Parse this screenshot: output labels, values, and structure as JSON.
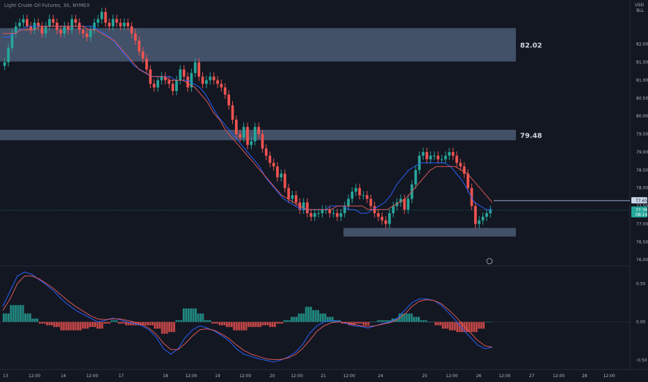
{
  "chart_data": {
    "type": "candlestick",
    "title": "Light Crude Oil Futures, 30, NYMEX",
    "currency": "USD",
    "unit_label": "BLL",
    "main_pane": {
      "ylim": [
        75.85,
        83.0
      ],
      "y_ticks": [
        {
          "value": 82.0,
          "label": "82.00"
        },
        {
          "value": 81.5,
          "label": "81.50"
        },
        {
          "value": 81.0,
          "label": "81.00"
        },
        {
          "value": 80.5,
          "label": "80.50"
        },
        {
          "value": 80.0,
          "label": "80.00"
        },
        {
          "value": 79.5,
          "label": "79.50"
        },
        {
          "value": 79.0,
          "label": "79.00"
        },
        {
          "value": 78.5,
          "label": "78.50"
        },
        {
          "value": 78.0,
          "label": "78.00"
        },
        {
          "value": 77.5,
          "label": "77.50"
        },
        {
          "value": 77.0,
          "label": "77.00"
        },
        {
          "value": 76.5,
          "label": "76.50"
        },
        {
          "value": 76.0,
          "label": "76.00"
        }
      ],
      "zones": [
        {
          "label": "82.02",
          "low": 81.52,
          "high": 82.45,
          "x_start": 0,
          "x_end": 139
        },
        {
          "label": "79.48",
          "low": 79.33,
          "high": 79.62,
          "x_start": 0,
          "x_end": 139
        },
        {
          "label": "",
          "low": 76.65,
          "high": 76.89,
          "x_start": 88,
          "x_end": 139
        }
      ],
      "price_tags": [
        {
          "label": "77.65",
          "value": 77.65
        },
        {
          "label": "77.39",
          "value": 77.39
        },
        {
          "label": "08:14",
          "value": 77.26
        }
      ],
      "close_series": [
        81.5,
        81.9,
        82.3,
        82.5,
        82.6,
        82.7,
        82.5,
        82.4,
        82.6,
        82.5,
        82.3,
        82.5,
        82.7,
        82.6,
        82.4,
        82.3,
        82.5,
        82.4,
        82.7,
        82.6,
        82.4,
        82.3,
        82.2,
        82.4,
        82.6,
        82.7,
        82.9,
        82.6,
        82.5,
        82.7,
        82.6,
        82.5,
        82.6,
        82.5,
        82.3,
        82.1,
        81.8,
        81.6,
        81.3,
        80.9,
        80.8,
        81.0,
        81.1,
        81.0,
        80.9,
        80.7,
        81.0,
        81.3,
        81.1,
        80.8,
        81.2,
        81.5,
        81.1,
        80.9,
        81.0,
        81.1,
        81.0,
        80.9,
        80.8,
        80.6,
        80.3,
        79.9,
        79.5,
        79.4,
        79.7,
        79.2,
        79.3,
        79.7,
        79.5,
        79.1,
        78.9,
        78.7,
        78.6,
        78.3,
        78.4,
        78.0,
        77.7,
        77.8,
        77.6,
        77.4,
        77.6,
        77.3,
        77.2,
        77.3,
        77.3,
        77.4,
        77.4,
        77.3,
        77.3,
        77.2,
        77.3,
        77.5,
        77.7,
        77.9,
        78.0,
        77.8,
        77.8,
        77.7,
        77.5,
        77.3,
        77.2,
        77.1,
        77.0,
        77.3,
        77.5,
        77.6,
        77.7,
        77.4,
        77.7,
        78.1,
        78.5,
        78.9,
        79.0,
        78.8,
        78.9,
        78.9,
        78.8,
        78.8,
        78.9,
        79.0,
        78.9,
        78.7,
        78.6,
        78.4,
        78.0,
        77.5,
        77.0,
        77.1,
        77.2,
        77.3,
        77.39
      ],
      "ma_fast": [
        82.2,
        82.2,
        82.3,
        82.4,
        82.5,
        82.5,
        82.5,
        82.5,
        82.5,
        82.5,
        82.5,
        82.5,
        82.5,
        82.5,
        82.5,
        82.5,
        82.4,
        82.3,
        82.2,
        82.0,
        81.8,
        81.6,
        81.4,
        81.3,
        81.2,
        81.1,
        81.1,
        81.1,
        81.1,
        81.0,
        81.0,
        81.0,
        80.9,
        80.8,
        80.6,
        80.3,
        80.0,
        79.8,
        79.6,
        79.4,
        79.2,
        79.0,
        78.8,
        78.6,
        78.3,
        78.1,
        77.9,
        77.7,
        77.6,
        77.5,
        77.4,
        77.4,
        77.4,
        77.4,
        77.4,
        77.5,
        77.5,
        77.5,
        77.4,
        77.4,
        77.3,
        77.3,
        77.4,
        77.5,
        77.6,
        77.8,
        78.1,
        78.3,
        78.5,
        78.6,
        78.7,
        78.7,
        78.7,
        78.7,
        78.7,
        78.6,
        78.4,
        78.2,
        77.9,
        77.6,
        77.5,
        77.4,
        77.4
      ],
      "ma_slow": [
        82.3,
        82.3,
        82.3,
        82.4,
        82.4,
        82.4,
        82.5,
        82.5,
        82.5,
        82.5,
        82.5,
        82.5,
        82.5,
        82.5,
        82.4,
        82.4,
        82.3,
        82.2,
        82.1,
        81.9,
        81.7,
        81.5,
        81.3,
        81.2,
        81.1,
        81.1,
        81.1,
        81.0,
        81.0,
        81.0,
        80.9,
        80.8,
        80.6,
        80.4,
        80.1,
        79.9,
        79.6,
        79.4,
        79.2,
        79.0,
        78.8,
        78.6,
        78.4,
        78.2,
        78.0,
        77.8,
        77.7,
        77.6,
        77.5,
        77.4,
        77.4,
        77.4,
        77.4,
        77.4,
        77.5,
        77.5,
        77.5,
        77.5,
        77.5,
        77.4,
        77.4,
        77.4,
        77.4,
        77.5,
        77.6,
        77.7,
        77.9,
        78.1,
        78.3,
        78.5,
        78.6,
        78.6,
        78.6,
        78.6,
        78.5,
        78.4,
        78.2,
        78.0,
        77.8,
        77.6
      ]
    },
    "oscillator_pane": {
      "ylim": [
        -0.62,
        0.72
      ],
      "y_ticks": [
        {
          "value": 0.5,
          "label": "0.50"
        },
        {
          "value": 0.0,
          "label": "0.00"
        },
        {
          "value": -0.5,
          "label": "-0.50"
        }
      ],
      "macd": [
        0.2,
        0.4,
        0.6,
        0.65,
        0.62,
        0.55,
        0.48,
        0.4,
        0.3,
        0.22,
        0.15,
        0.1,
        0.05,
        0.0,
        0.02,
        0.05,
        0.03,
        0.0,
        -0.02,
        -0.05,
        -0.1,
        -0.2,
        -0.35,
        -0.42,
        -0.35,
        -0.2,
        -0.1,
        -0.05,
        -0.08,
        -0.12,
        -0.18,
        -0.25,
        -0.35,
        -0.42,
        -0.45,
        -0.48,
        -0.5,
        -0.52,
        -0.5,
        -0.46,
        -0.4,
        -0.3,
        -0.15,
        -0.05,
        0.0,
        0.02,
        0.01,
        -0.02,
        -0.05,
        -0.06,
        -0.08,
        -0.05,
        -0.02,
        0.0,
        0.05,
        0.15,
        0.25,
        0.3,
        0.3,
        0.28,
        0.22,
        0.12,
        0.02,
        -0.1,
        -0.2,
        -0.3,
        -0.35,
        -0.33
      ],
      "signal": [
        0.15,
        0.3,
        0.5,
        0.6,
        0.6,
        0.56,
        0.5,
        0.43,
        0.35,
        0.27,
        0.2,
        0.14,
        0.08,
        0.04,
        0.03,
        0.04,
        0.04,
        0.02,
        0.0,
        -0.03,
        -0.08,
        -0.16,
        -0.28,
        -0.36,
        -0.36,
        -0.28,
        -0.18,
        -0.1,
        -0.09,
        -0.11,
        -0.16,
        -0.22,
        -0.3,
        -0.37,
        -0.42,
        -0.45,
        -0.48,
        -0.49,
        -0.49,
        -0.47,
        -0.43,
        -0.35,
        -0.24,
        -0.12,
        -0.05,
        -0.01,
        0.0,
        -0.01,
        -0.03,
        -0.05,
        -0.06,
        -0.05,
        -0.03,
        -0.01,
        0.03,
        0.1,
        0.2,
        0.27,
        0.29,
        0.28,
        0.24,
        0.16,
        0.07,
        -0.04,
        -0.14,
        -0.24,
        -0.31,
        -0.33
      ]
    },
    "x_axis": {
      "ticks": [
        {
          "pos": 0.0,
          "label": "13"
        },
        {
          "pos": 0.047,
          "label": "12:00"
        },
        {
          "pos": 0.094,
          "label": "14"
        },
        {
          "pos": 0.141,
          "label": "12:00"
        },
        {
          "pos": 0.188,
          "label": "17"
        },
        {
          "pos": 0.26,
          "label": "18"
        },
        {
          "pos": 0.302,
          "label": "12:00"
        },
        {
          "pos": 0.345,
          "label": "19"
        },
        {
          "pos": 0.39,
          "label": "12:00"
        },
        {
          "pos": 0.434,
          "label": "20"
        },
        {
          "pos": 0.474,
          "label": "12:00"
        },
        {
          "pos": 0.517,
          "label": "21"
        },
        {
          "pos": 0.559,
          "label": "12:00"
        },
        {
          "pos": 0.61,
          "label": "24"
        },
        {
          "pos": 0.682,
          "label": "25"
        },
        {
          "pos": 0.726,
          "label": "12:00"
        },
        {
          "pos": 0.77,
          "label": "26"
        },
        {
          "pos": 0.812,
          "label": "12:00"
        },
        {
          "pos": 0.856,
          "label": "27"
        },
        {
          "pos": 0.9,
          "label": "12:00"
        },
        {
          "pos": 0.942,
          "label": "28"
        },
        {
          "pos": 0.982,
          "label": "12:00"
        }
      ]
    },
    "colors": {
      "background": "#131722",
      "up": "#26a69a",
      "down": "#ef5350",
      "zone": "#4b5a74",
      "ma_fast": "#2962ff",
      "ma_slow": "#e05a5a",
      "last_price_tag": "#26a69a",
      "axis_text": "#b2b5be"
    }
  }
}
